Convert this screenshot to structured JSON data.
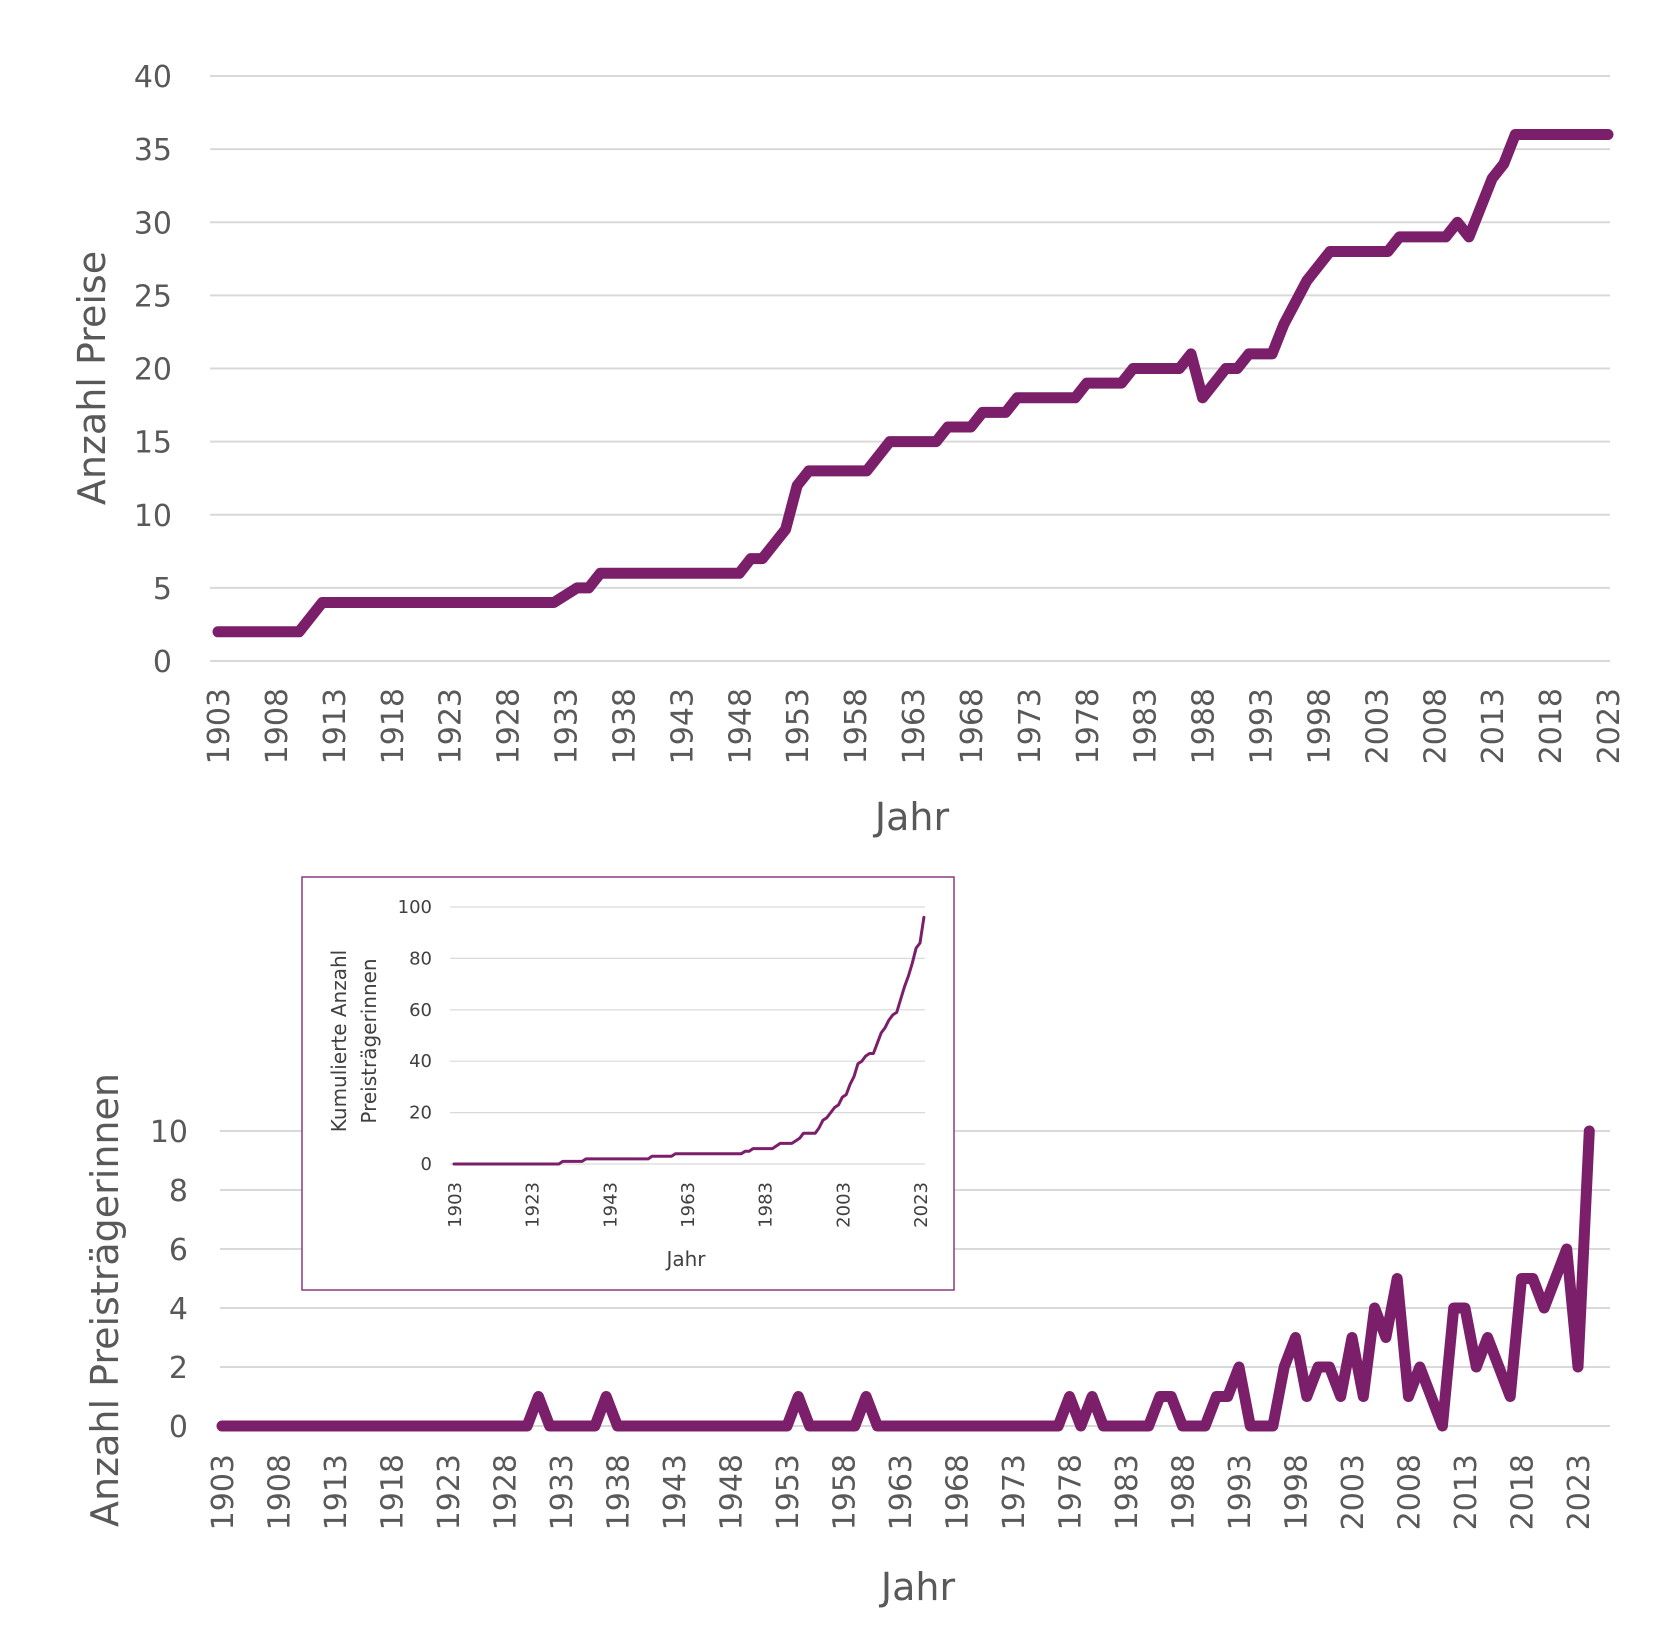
{
  "colors": {
    "series": "#7b1f6a",
    "grid": "#d9d9d9",
    "text": "#595959",
    "inset_border": "#8b3a7e"
  },
  "chart_data": [
    {
      "type": "line",
      "xlabel": "Jahr",
      "ylabel": "Anzahl Preise",
      "ylim": [
        0,
        40
      ],
      "yticks": [
        "0",
        "5",
        "10",
        "15",
        "20",
        "25",
        "30",
        "35",
        "40"
      ],
      "xticks": [
        "1903",
        "1908",
        "1913",
        "1918",
        "1923",
        "1928",
        "1933",
        "1938",
        "1943",
        "1948",
        "1953",
        "1958",
        "1963",
        "1968",
        "1973",
        "1978",
        "1983",
        "1988",
        "1993",
        "1998",
        "2003",
        "2008",
        "2013",
        "2018",
        "2023"
      ],
      "xlim": [
        1903,
        2023
      ],
      "series": [
        {
          "points": [
            [
              1903,
              2
            ],
            [
              1910,
              2
            ],
            [
              1912,
              4
            ],
            [
              1932,
              4
            ],
            [
              1934,
              5
            ],
            [
              1935,
              5
            ],
            [
              1936,
              6
            ],
            [
              1948,
              6
            ],
            [
              1949,
              7
            ],
            [
              1950,
              7
            ],
            [
              1951,
              8
            ],
            [
              1952,
              9
            ],
            [
              1953,
              12
            ],
            [
              1954,
              13
            ],
            [
              1959,
              13
            ],
            [
              1961,
              15
            ],
            [
              1965,
              15
            ],
            [
              1966,
              16
            ],
            [
              1968,
              16
            ],
            [
              1969,
              17
            ],
            [
              1971,
              17
            ],
            [
              1972,
              18
            ],
            [
              1977,
              18
            ],
            [
              1978,
              19
            ],
            [
              1981,
              19
            ],
            [
              1982,
              20
            ],
            [
              1986,
              20
            ],
            [
              1987,
              21
            ],
            [
              1988,
              18
            ],
            [
              1990,
              20
            ],
            [
              1991,
              20
            ],
            [
              1992,
              21
            ],
            [
              1994,
              21
            ],
            [
              1995,
              23
            ],
            [
              1997,
              26
            ],
            [
              1998,
              27
            ],
            [
              1999,
              28
            ],
            [
              2004,
              28
            ],
            [
              2005,
              29
            ],
            [
              2009,
              29
            ],
            [
              2010,
              30
            ],
            [
              2011,
              29
            ],
            [
              2012,
              31
            ],
            [
              2013,
              33
            ],
            [
              2014,
              34
            ],
            [
              2015,
              36
            ],
            [
              2023,
              36
            ]
          ]
        }
      ]
    },
    {
      "type": "line",
      "xlabel": "Jahr",
      "ylabel": "Anzahl Preisträgerinnen",
      "ylim": [
        0,
        10
      ],
      "yticks": [
        "0",
        "2",
        "4",
        "6",
        "8",
        "10"
      ],
      "xticks": [
        "1903",
        "1908",
        "1913",
        "1918",
        "1923",
        "1928",
        "1933",
        "1938",
        "1943",
        "1948",
        "1953",
        "1958",
        "1963",
        "1968",
        "1973",
        "1978",
        "1983",
        "1988",
        "1993",
        "1998",
        "2003",
        "2008",
        "2013",
        "2018",
        "2023"
      ],
      "xlim": [
        1903,
        2023
      ],
      "series": [
        {
          "points": [
            [
              1903,
              0
            ],
            [
              1930,
              0
            ],
            [
              1931,
              1
            ],
            [
              1932,
              0
            ],
            [
              1936,
              0
            ],
            [
              1937,
              1
            ],
            [
              1938,
              0
            ],
            [
              1953,
              0
            ],
            [
              1954,
              1
            ],
            [
              1955,
              0
            ],
            [
              1959,
              0
            ],
            [
              1960,
              1
            ],
            [
              1961,
              0
            ],
            [
              1977,
              0
            ],
            [
              1978,
              1
            ],
            [
              1979,
              0
            ],
            [
              1980,
              1
            ],
            [
              1981,
              0
            ],
            [
              1985,
              0
            ],
            [
              1986,
              1
            ],
            [
              1987,
              1
            ],
            [
              1988,
              0
            ],
            [
              1990,
              0
            ],
            [
              1991,
              1
            ],
            [
              1992,
              1
            ],
            [
              1993,
              2
            ],
            [
              1994,
              0
            ],
            [
              1996,
              0
            ],
            [
              1997,
              2
            ],
            [
              1998,
              3
            ],
            [
              1999,
              1
            ],
            [
              2000,
              2
            ],
            [
              2001,
              2
            ],
            [
              2002,
              1
            ],
            [
              2003,
              3
            ],
            [
              2004,
              1
            ],
            [
              2005,
              4
            ],
            [
              2006,
              3
            ],
            [
              2007,
              5
            ],
            [
              2008,
              1
            ],
            [
              2009,
              2
            ],
            [
              2010,
              1
            ],
            [
              2011,
              0
            ],
            [
              2012,
              4
            ],
            [
              2013,
              4
            ],
            [
              2014,
              2
            ],
            [
              2015,
              3
            ],
            [
              2016,
              2
            ],
            [
              2017,
              1
            ],
            [
              2018,
              5
            ],
            [
              2019,
              5
            ],
            [
              2020,
              4
            ],
            [
              2021,
              5
            ],
            [
              2022,
              6
            ],
            [
              2023,
              2
            ],
            [
              2024,
              10
            ]
          ]
        }
      ]
    },
    {
      "type": "line",
      "xlabel": "Jahr",
      "ylabel": "Kumulierte Anzahl Preisträgerinnen",
      "ylim": [
        0,
        100
      ],
      "yticks": [
        "0",
        "20",
        "40",
        "60",
        "80",
        "100"
      ],
      "xticks": [
        "1903",
        "1923",
        "1943",
        "1963",
        "1983",
        "2003",
        "2023"
      ],
      "xlim": [
        1903,
        2023
      ],
      "series": [
        {
          "points": [
            [
              1903,
              0
            ],
            [
              1930,
              0
            ],
            [
              1931,
              1
            ],
            [
              1936,
              1
            ],
            [
              1937,
              2
            ],
            [
              1953,
              2
            ],
            [
              1954,
              3
            ],
            [
              1959,
              3
            ],
            [
              1960,
              4
            ],
            [
              1977,
              4
            ],
            [
              1978,
              5
            ],
            [
              1979,
              5
            ],
            [
              1980,
              6
            ],
            [
              1985,
              6
            ],
            [
              1986,
              7
            ],
            [
              1987,
              8
            ],
            [
              1990,
              8
            ],
            [
              1991,
              9
            ],
            [
              1992,
              10
            ],
            [
              1993,
              12
            ],
            [
              1996,
              12
            ],
            [
              1997,
              14
            ],
            [
              1998,
              17
            ],
            [
              1999,
              18
            ],
            [
              2000,
              20
            ],
            [
              2001,
              22
            ],
            [
              2002,
              23
            ],
            [
              2003,
              26
            ],
            [
              2004,
              27
            ],
            [
              2005,
              31
            ],
            [
              2006,
              34
            ],
            [
              2007,
              39
            ],
            [
              2008,
              40
            ],
            [
              2009,
              42
            ],
            [
              2010,
              43
            ],
            [
              2011,
              43
            ],
            [
              2012,
              47
            ],
            [
              2013,
              51
            ],
            [
              2014,
              53
            ],
            [
              2015,
              56
            ],
            [
              2016,
              58
            ],
            [
              2017,
              59
            ],
            [
              2018,
              64
            ],
            [
              2019,
              69
            ],
            [
              2020,
              73
            ],
            [
              2021,
              78
            ],
            [
              2022,
              84
            ],
            [
              2023,
              86
            ],
            [
              2024,
              96
            ]
          ]
        }
      ]
    }
  ]
}
